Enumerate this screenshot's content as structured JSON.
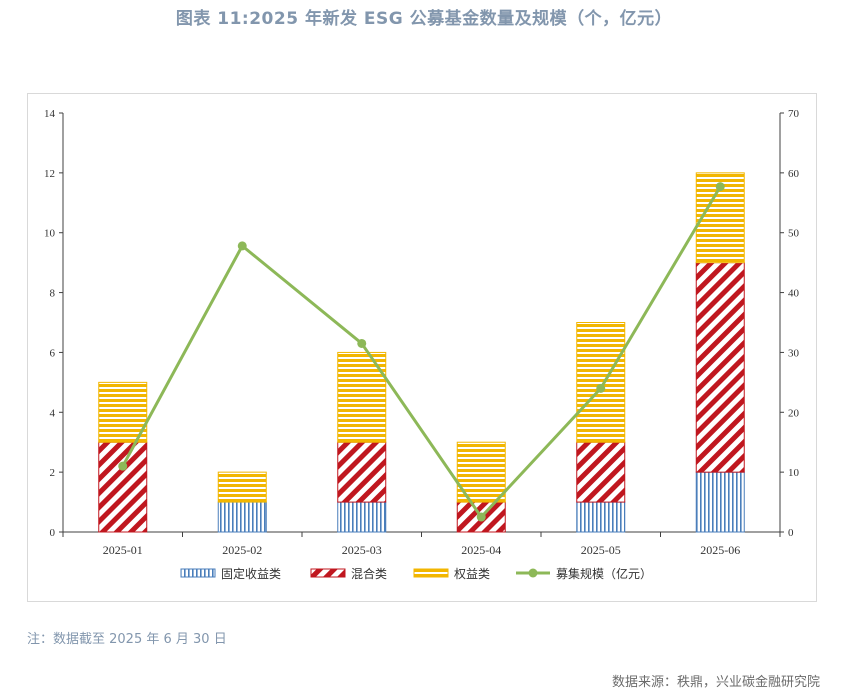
{
  "title": "图表 11:2025 年新发 ESG 公募基金数量及规模（个，亿元）",
  "note": "注：数据截至 2025 年 6 月 30 日",
  "source": "数据来源：秩鼎，兴业碳金融研究院",
  "chart_data": {
    "type": "bar",
    "stacked": true,
    "categories": [
      "2025-01",
      "2025-02",
      "2025-03",
      "2025-04",
      "2025-05",
      "2025-06"
    ],
    "series": [
      {
        "name": "固定收益类",
        "type": "bar",
        "axis": "left",
        "pattern": "vertical-stripes",
        "color": "#4a7ebb",
        "values": [
          0,
          1,
          1,
          0,
          1,
          2
        ]
      },
      {
        "name": "混合类",
        "type": "bar",
        "axis": "left",
        "pattern": "diagonal-stripes",
        "color": "#c0171f",
        "values": [
          3,
          0,
          2,
          1,
          2,
          7
        ]
      },
      {
        "name": "权益类",
        "type": "bar",
        "axis": "left",
        "pattern": "horizontal-stripes",
        "color": "#f2b600",
        "values": [
          2,
          1,
          3,
          2,
          4,
          3
        ]
      },
      {
        "name": "募集规模（亿元）",
        "type": "line",
        "axis": "right",
        "color": "#8db858",
        "values": [
          11,
          47.8,
          31.5,
          2.5,
          24,
          57.7
        ]
      }
    ],
    "y_left": {
      "min": 0,
      "max": 14,
      "ticks": [
        0,
        2,
        4,
        6,
        8,
        10,
        12,
        14
      ]
    },
    "y_right": {
      "min": 0,
      "max": 70,
      "ticks": [
        0,
        10,
        20,
        30,
        40,
        50,
        60,
        70
      ]
    },
    "grid": false,
    "legend_position": "bottom"
  }
}
